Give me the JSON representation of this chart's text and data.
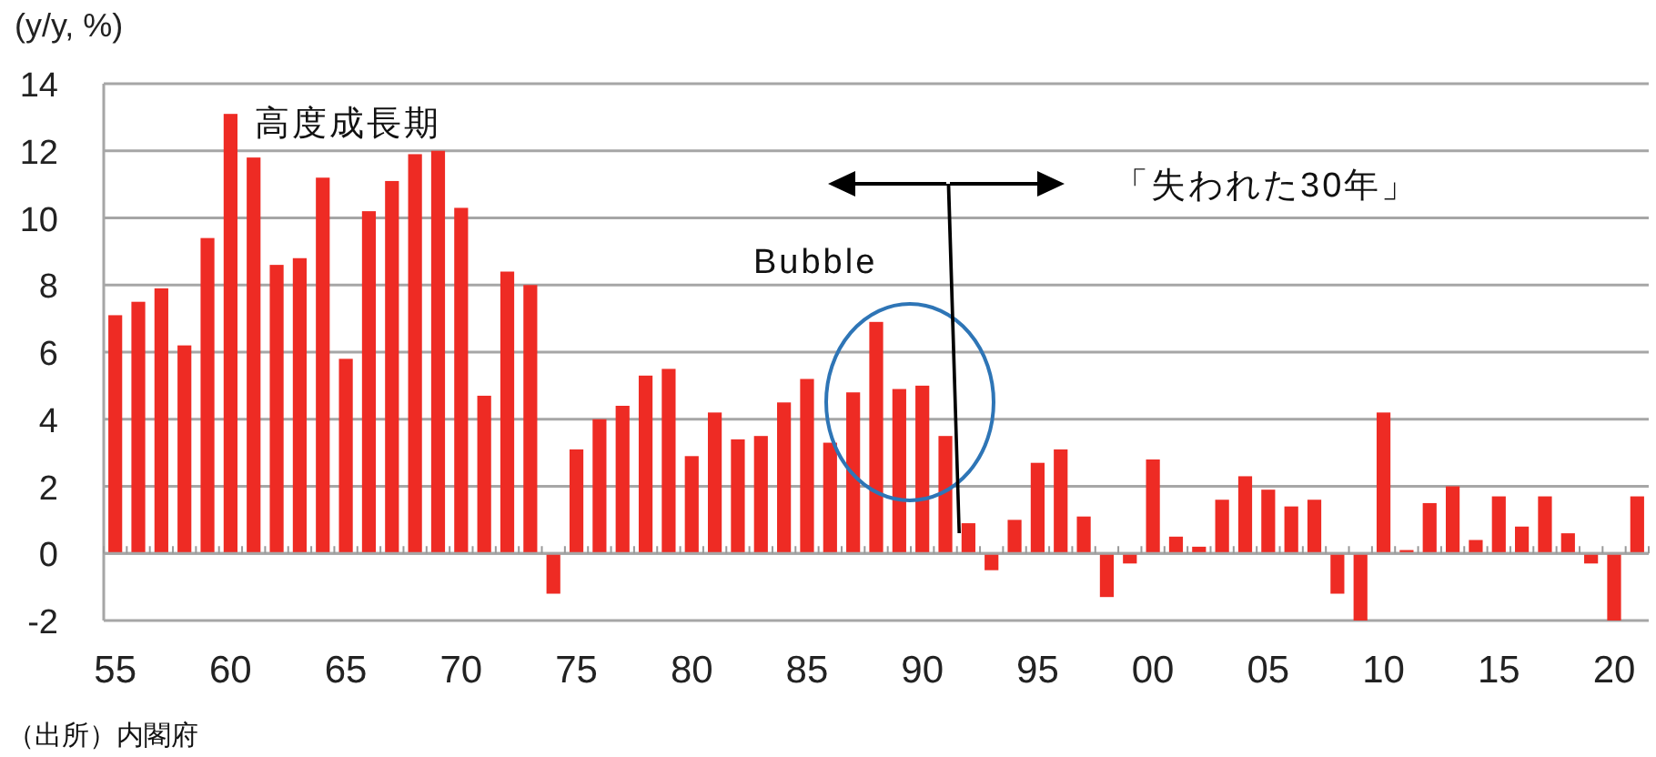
{
  "chart_data": {
    "type": "bar",
    "ylabel": "(y/y, %)",
    "categories": [
      "55",
      null,
      null,
      null,
      null,
      "60",
      null,
      null,
      null,
      null,
      "65",
      null,
      null,
      null,
      null,
      "70",
      null,
      null,
      null,
      null,
      "75",
      null,
      null,
      null,
      null,
      "80",
      null,
      null,
      null,
      null,
      "85",
      null,
      null,
      null,
      null,
      "90",
      null,
      null,
      null,
      null,
      "95",
      null,
      null,
      null,
      null,
      "00",
      null,
      null,
      null,
      null,
      "05",
      null,
      null,
      null,
      null,
      "10",
      null,
      null,
      null,
      null,
      "15",
      null,
      null,
      null,
      null,
      "20",
      null
    ],
    "values": [
      7.1,
      7.5,
      7.9,
      6.2,
      9.4,
      13.1,
      11.8,
      8.6,
      8.8,
      11.2,
      5.8,
      10.2,
      11.1,
      11.9,
      12.0,
      10.3,
      4.7,
      8.4,
      8.0,
      -1.2,
      3.1,
      4.0,
      4.4,
      5.3,
      5.5,
      2.9,
      4.2,
      3.4,
      3.5,
      4.5,
      5.2,
      3.3,
      4.8,
      6.9,
      4.9,
      5.0,
      3.5,
      0.9,
      -0.5,
      1.0,
      2.7,
      3.1,
      1.1,
      -1.3,
      -0.3,
      2.8,
      0.5,
      0.2,
      1.6,
      2.3,
      1.9,
      1.4,
      1.6,
      -1.2,
      -2.0,
      4.2,
      0.1,
      1.5,
      2.0,
      0.4,
      1.7,
      0.8,
      1.7,
      0.6,
      -0.3,
      -2.0,
      1.7
    ],
    "color": "#ee2b24",
    "ylim": [
      -2,
      14
    ],
    "yticks": [
      -2,
      0,
      2,
      4,
      6,
      8,
      10,
      12,
      14
    ],
    "grid": "y",
    "annotations": [
      "高度成長期",
      "Bubble",
      "「失われた30年」",
      "（出所）内閣府"
    ]
  }
}
